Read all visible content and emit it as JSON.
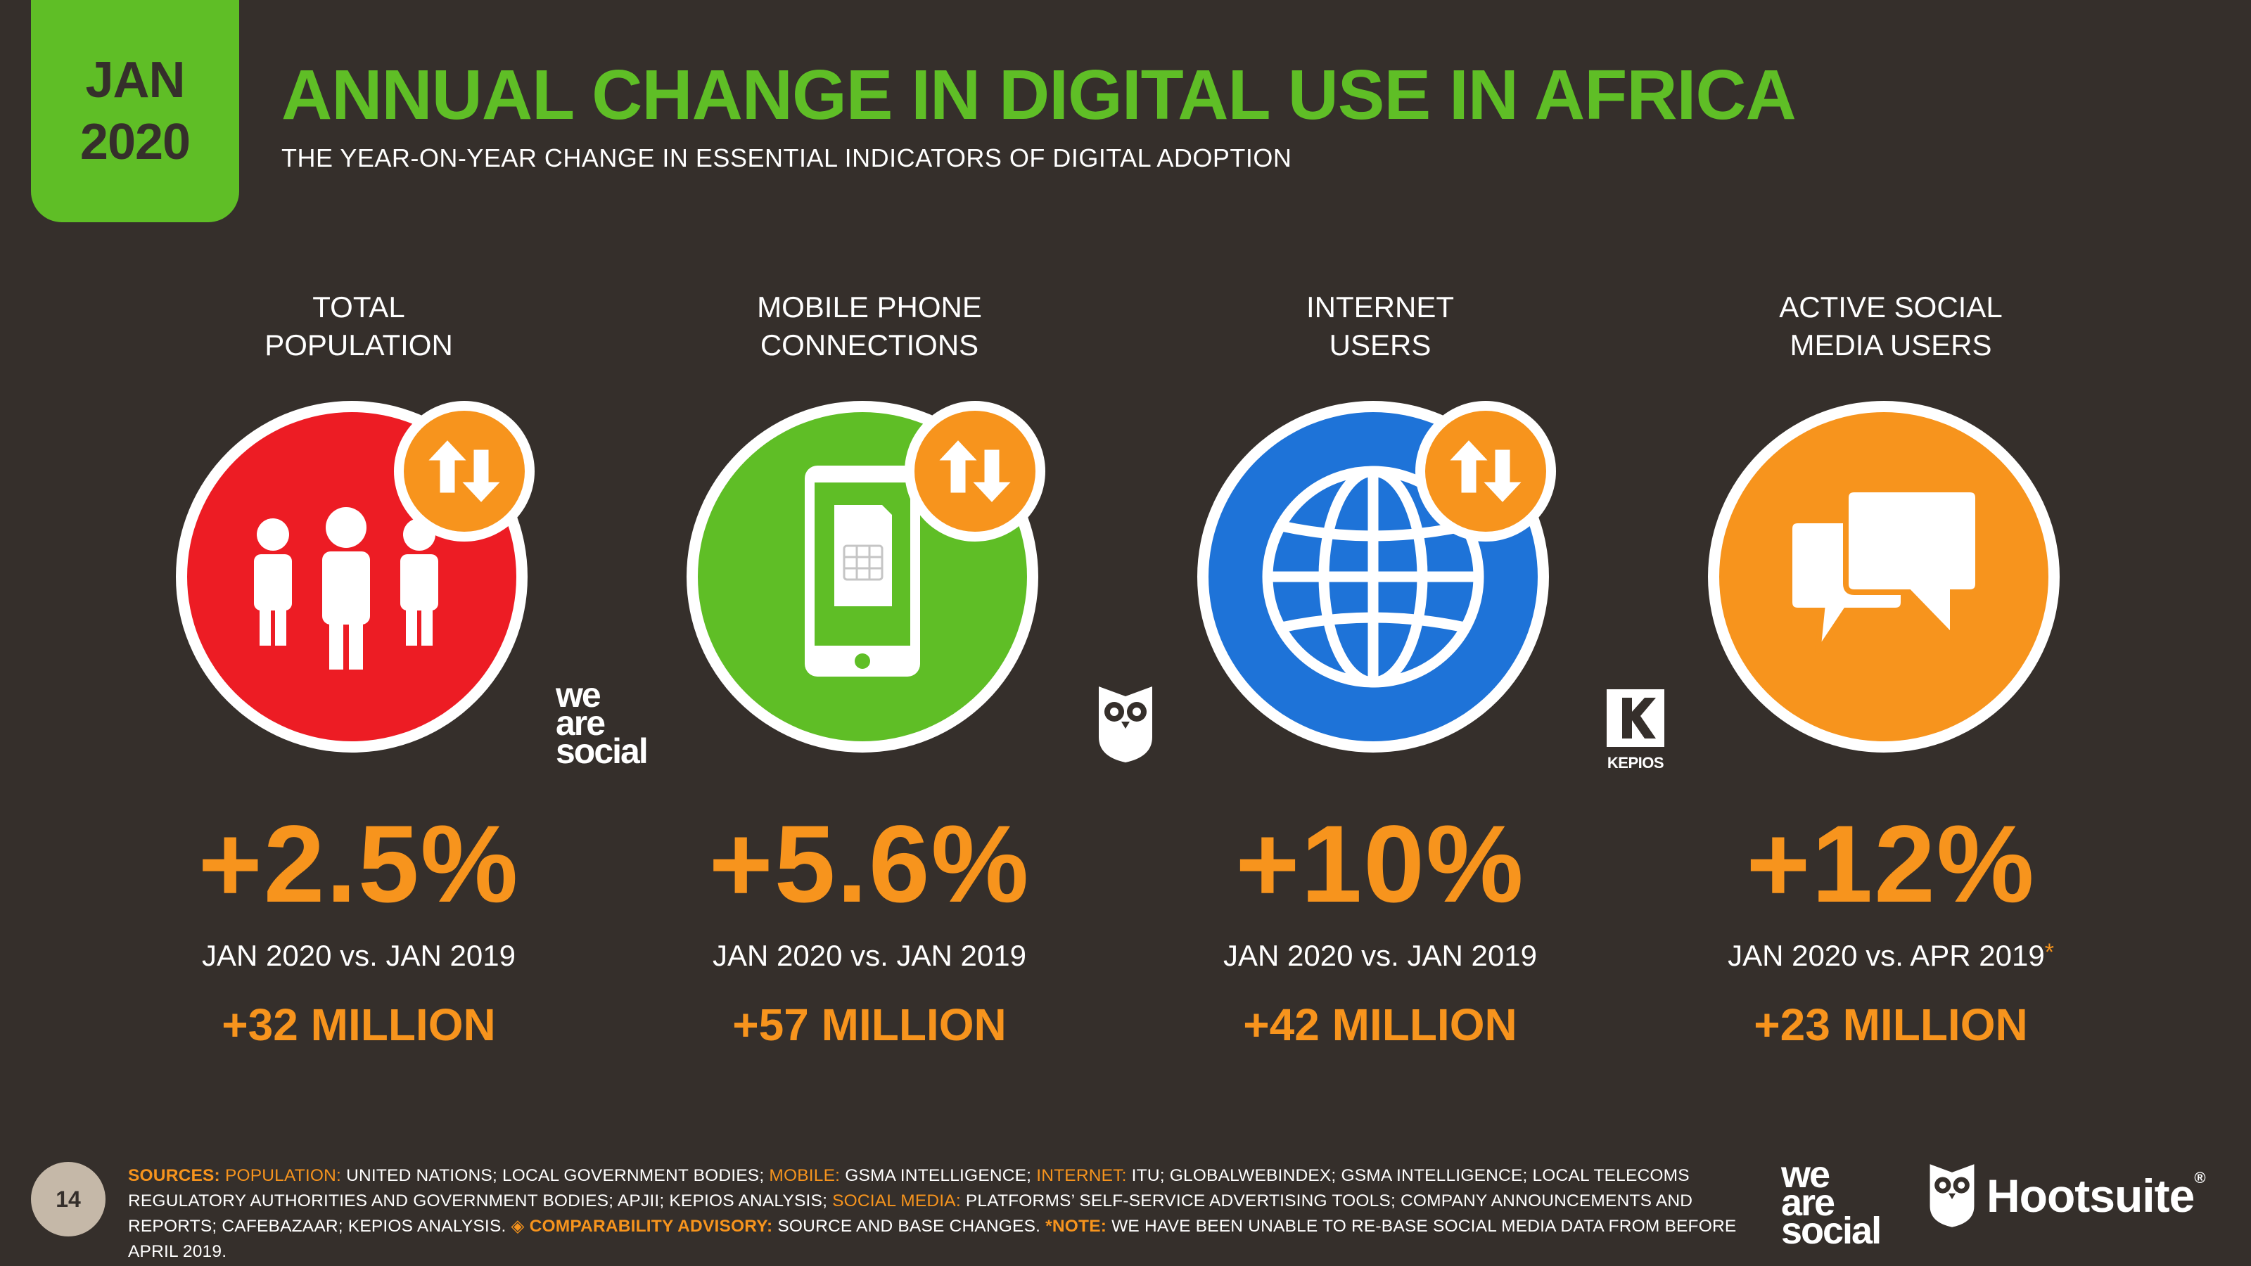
{
  "header": {
    "badge_month": "JAN",
    "badge_year": "2020",
    "title": "ANNUAL CHANGE IN DIGITAL USE IN AFRICA",
    "subtitle": "THE YEAR-ON-YEAR CHANGE IN ESSENTIAL INDICATORS OF DIGITAL ADOPTION"
  },
  "colors": {
    "background": "#352f2b",
    "accent_green": "#5fbe26",
    "accent_orange": "#f7941d",
    "population_red": "#ed1c24",
    "mobile_green": "#5fbe26",
    "internet_blue": "#1e73d8",
    "social_orange": "#f7941d"
  },
  "indicators": [
    {
      "label_line1": "TOTAL",
      "label_line2": "POPULATION",
      "icon": "people-icon",
      "change": "+2.5%",
      "comparison": "JAN 2020 vs. JAN 2019",
      "absolute": "+32 MILLION"
    },
    {
      "label_line1": "MOBILE PHONE",
      "label_line2": "CONNECTIONS",
      "icon": "mobile-phone-icon",
      "change": "+5.6%",
      "comparison": "JAN 2020 vs. JAN 2019",
      "absolute": "+57 MILLION"
    },
    {
      "label_line1": "INTERNET",
      "label_line2": "USERS",
      "icon": "globe-icon",
      "change": "+10%",
      "comparison": "JAN 2020 vs. JAN 2019",
      "absolute": "+42 MILLION"
    },
    {
      "label_line1": "ACTIVE SOCIAL",
      "label_line2": "MEDIA USERS",
      "icon": "chat-bubbles-icon",
      "change": "+12%",
      "comparison": "JAN 2020 vs. APR 2019",
      "comparison_mark": "*",
      "absolute": "+23 MILLION"
    }
  ],
  "logos": {
    "we_are_social": [
      "we",
      "are",
      "social"
    ],
    "kepios": "KEPIOS",
    "hootsuite": "Hootsuite",
    "hootsuite_reg": "®"
  },
  "footer": {
    "page_number": "14",
    "sources_label": "SOURCES:",
    "pop_label": "POPULATION:",
    "pop_text": "UNITED NATIONS; LOCAL GOVERNMENT BODIES;",
    "mobile_label": "MOBILE:",
    "mobile_text": "GSMA INTELLIGENCE;",
    "internet_label": "INTERNET:",
    "internet_text": "ITU; GLOBALWEBINDEX; GSMA INTELLIGENCE; LOCAL TELECOMS REGULATORY AUTHORITIES AND GOVERNMENT BODIES; APJII; KEPIOS ANALYSIS;",
    "social_label": "SOCIAL MEDIA:",
    "social_text": "PLATFORMS’ SELF-SERVICE ADVERTISING TOOLS; COMPANY ANNOUNCEMENTS AND REPORTS; CAFEBAZAAR; KEPIOS ANALYSIS.",
    "advisory_label": "◈ COMPARABILITY ADVISORY:",
    "advisory_text": "SOURCE AND BASE CHANGES.",
    "note_label": "*NOTE:",
    "note_text": "WE HAVE BEEN UNABLE TO RE-BASE SOCIAL MEDIA DATA FROM BEFORE APRIL 2019."
  }
}
